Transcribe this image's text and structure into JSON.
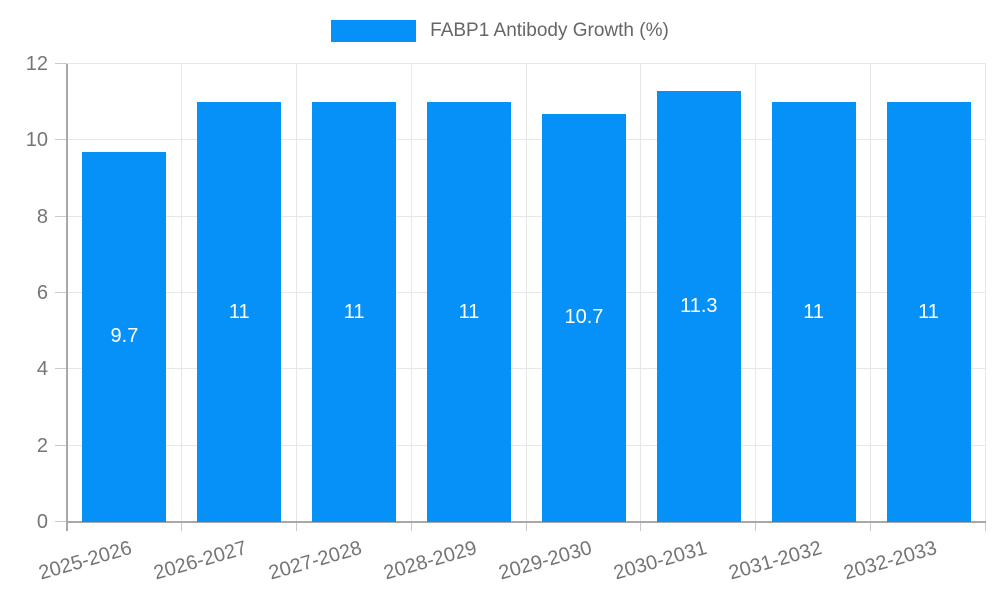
{
  "chart_data": {
    "type": "bar",
    "title": "FABP1 Antibody Growth (%)",
    "categories": [
      "2025-2026",
      "2026-2027",
      "2027-2028",
      "2028-2029",
      "2029-2030",
      "2030-2031",
      "2031-2032",
      "2032-2033"
    ],
    "values": [
      9.7,
      11,
      11,
      11,
      10.7,
      11.3,
      11,
      11
    ],
    "value_labels": [
      "9.7",
      "11",
      "11",
      "11",
      "10.7",
      "11.3",
      "11",
      "11"
    ],
    "xlabel": "",
    "ylabel": "",
    "ylim": [
      0,
      12
    ],
    "yticks": [
      0,
      2,
      4,
      6,
      8,
      10,
      12
    ],
    "ytick_labels": [
      "0",
      "2",
      "4",
      "6",
      "8",
      "10",
      "12"
    ],
    "grid": true,
    "legend_position": "top-center"
  },
  "legend": {
    "label": "FABP1 Antibody Growth (%)"
  },
  "colors": {
    "bar": "#0691f8",
    "grid": "#e7e7e7",
    "axis": "#a8a8a8",
    "tick": "#c9c9c9",
    "axis_text": "#757575",
    "legend_text": "#666666",
    "bar_label": "#ffffff",
    "background": "#ffffff"
  }
}
